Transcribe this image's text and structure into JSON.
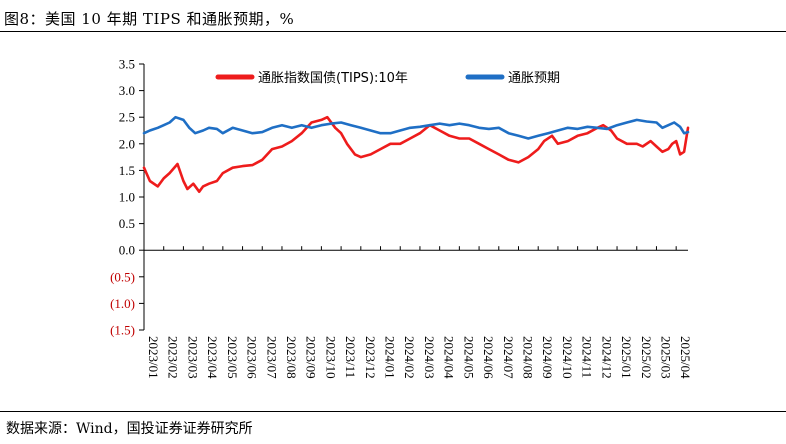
{
  "figure": {
    "title": "图8：美国 10 年期 TIPS 和通胀预期，%",
    "source": "数据来源：Wind，国投证券证券研究所"
  },
  "chart_data": {
    "type": "line",
    "title": "美国 10 年期 TIPS 和通胀预期，%",
    "xlabel": "",
    "ylabel": "",
    "ylim": [
      -1.5,
      3.5
    ],
    "yticks": [
      3.5,
      3.0,
      2.5,
      2.0,
      1.5,
      1.0,
      0.5,
      0.0,
      -0.5,
      -1.0,
      -1.5
    ],
    "ytick_labels": [
      "3.5",
      "3.0",
      "2.5",
      "2.0",
      "1.5",
      "1.0",
      "0.5",
      "0.0",
      "(0.5)",
      "(1.0)",
      "(1.5)"
    ],
    "negative_label_color": "#c00000",
    "categories": [
      "2023/01",
      "2023/02",
      "2023/03",
      "2023/04",
      "2023/05",
      "2023/06",
      "2023/07",
      "2023/08",
      "2023/09",
      "2023/10",
      "2023/11",
      "2023/12",
      "2024/01",
      "2024/02",
      "2024/03",
      "2024/04",
      "2024/05",
      "2024/06",
      "2024/07",
      "2024/08",
      "2024/09",
      "2024/10",
      "2024/11",
      "2024/12",
      "2025/01",
      "2025/02",
      "2025/03",
      "2025/04"
    ],
    "x_positions": [
      0,
      1,
      2,
      3,
      4,
      5,
      6,
      7,
      8,
      9,
      10,
      11,
      12,
      13,
      14,
      15,
      16,
      17,
      18,
      19,
      20,
      21,
      22,
      23,
      24,
      25,
      26,
      27
    ],
    "legend_position": "top-center",
    "series": [
      {
        "name": "通胀指数国债(TIPS):10年",
        "color": "#ee1c1c",
        "x": [
          0,
          0.3,
          0.7,
          1,
          1.3,
          1.7,
          2,
          2.2,
          2.5,
          2.8,
          3,
          3.3,
          3.7,
          4,
          4.5,
          5,
          5.5,
          6,
          6.5,
          7,
          7.5,
          8,
          8.5,
          9,
          9.3,
          9.7,
          10,
          10.3,
          10.7,
          11,
          11.5,
          12,
          12.5,
          13,
          13.5,
          14,
          14.5,
          15,
          15.5,
          16,
          16.5,
          17,
          17.5,
          18,
          18.5,
          19,
          19.5,
          20,
          20.3,
          20.7,
          21,
          21.5,
          22,
          22.5,
          23,
          23.3,
          23.7,
          24,
          24.5,
          25,
          25.3,
          25.7,
          26,
          26.3,
          26.6,
          26.8,
          27,
          27.2,
          27.4,
          27.6
        ],
        "values": [
          1.55,
          1.3,
          1.2,
          1.35,
          1.45,
          1.62,
          1.3,
          1.15,
          1.25,
          1.1,
          1.2,
          1.25,
          1.3,
          1.45,
          1.55,
          1.58,
          1.6,
          1.7,
          1.9,
          1.95,
          2.05,
          2.2,
          2.4,
          2.45,
          2.5,
          2.3,
          2.2,
          2.0,
          1.8,
          1.75,
          1.8,
          1.9,
          2.0,
          2.0,
          2.1,
          2.2,
          2.35,
          2.25,
          2.15,
          2.1,
          2.1,
          2.0,
          1.9,
          1.8,
          1.7,
          1.65,
          1.75,
          1.9,
          2.05,
          2.15,
          2.0,
          2.05,
          2.15,
          2.2,
          2.3,
          2.35,
          2.25,
          2.1,
          2.0,
          2.0,
          1.95,
          2.05,
          1.95,
          1.85,
          1.9,
          2.0,
          2.05,
          1.8,
          1.85,
          2.3
        ]
      },
      {
        "name": "通胀预期",
        "color": "#1f6fc5",
        "x": [
          0,
          0.3,
          0.7,
          1,
          1.3,
          1.6,
          2,
          2.3,
          2.6,
          3,
          3.3,
          3.7,
          4,
          4.5,
          5,
          5.5,
          6,
          6.5,
          7,
          7.5,
          8,
          8.5,
          9,
          9.5,
          10,
          10.5,
          11,
          11.5,
          12,
          12.5,
          13,
          13.5,
          14,
          14.5,
          15,
          15.5,
          16,
          16.5,
          17,
          17.5,
          18,
          18.5,
          19,
          19.5,
          20,
          20.5,
          21,
          21.5,
          22,
          22.5,
          23,
          23.5,
          24,
          24.5,
          25,
          25.5,
          26,
          26.3,
          26.6,
          26.9,
          27.2,
          27.4,
          27.6
        ],
        "values": [
          2.2,
          2.25,
          2.3,
          2.35,
          2.4,
          2.5,
          2.45,
          2.3,
          2.2,
          2.25,
          2.3,
          2.28,
          2.2,
          2.3,
          2.25,
          2.2,
          2.22,
          2.3,
          2.35,
          2.3,
          2.35,
          2.3,
          2.35,
          2.38,
          2.4,
          2.35,
          2.3,
          2.25,
          2.2,
          2.2,
          2.25,
          2.3,
          2.32,
          2.35,
          2.38,
          2.35,
          2.38,
          2.35,
          2.3,
          2.28,
          2.3,
          2.2,
          2.15,
          2.1,
          2.15,
          2.2,
          2.25,
          2.3,
          2.28,
          2.32,
          2.3,
          2.28,
          2.35,
          2.4,
          2.45,
          2.42,
          2.4,
          2.3,
          2.35,
          2.4,
          2.32,
          2.2,
          2.22
        ]
      }
    ]
  }
}
